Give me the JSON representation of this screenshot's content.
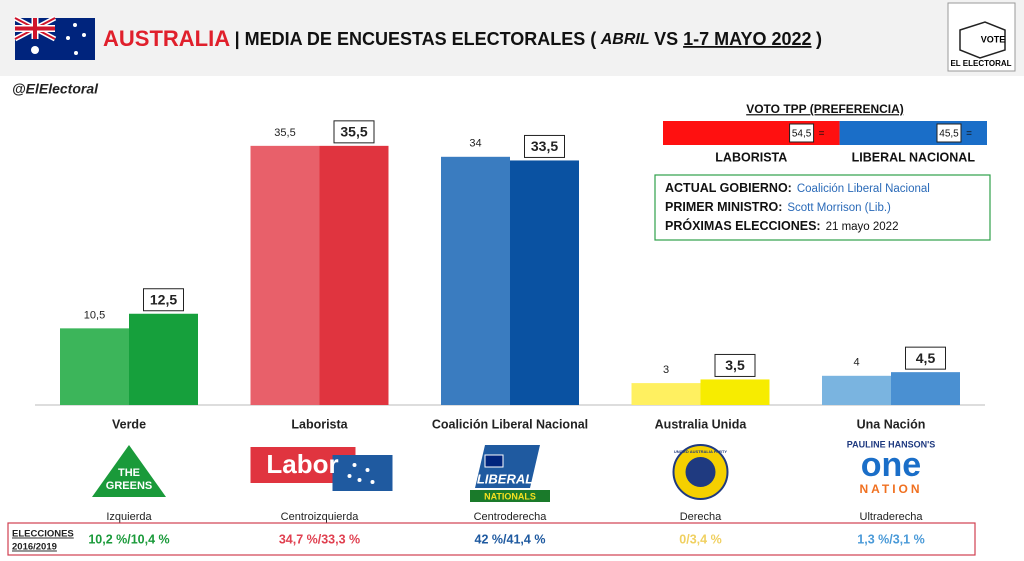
{
  "chart_data": {
    "type": "bar",
    "title": [
      "AUSTRALIA",
      "| MEDIA DE ENCUESTAS ELECTORALES (",
      "ABRIL",
      " VS ",
      "1-7 MAYO 2022",
      ")"
    ],
    "brand": [
      "VOTE",
      "EL ELECTORAL"
    ],
    "source": "@ElElectoral",
    "categories": [
      "Verde",
      "Laborista",
      "Coalición Liberal Nacional",
      "Australia Unida",
      "Una Nación"
    ],
    "series": [
      {
        "colors": [
          "#3cb55a",
          "#e8606a",
          "#3a7cc0",
          "#fff060",
          "#7ab4e0"
        ],
        "values": [
          10.5,
          35.5,
          34,
          3,
          4
        ],
        "value_labels": [
          "10,5",
          "35,5",
          "34",
          "3",
          "4"
        ]
      },
      {
        "colors": [
          "#16a03c",
          "#e0343f",
          "#0a52a2",
          "#f7ec00",
          "#4a90d2"
        ],
        "values": [
          12.5,
          35.5,
          33.5,
          3.5,
          4.5
        ],
        "value_labels": [
          "12,5",
          "35,5",
          "33,5",
          "3,5",
          "4,5"
        ]
      }
    ],
    "logos": [
      [
        "THE",
        "GREENS"
      ],
      [
        "Labor"
      ],
      [
        "LIBERAL",
        "NATIONALS"
      ],
      [
        "UNITED AUSTRALIA PARTY"
      ],
      [
        "PAULINE HANSON'S",
        "one",
        "NATION"
      ]
    ],
    "ideologies": [
      "Izquierda",
      "Centroizquierda",
      "Centroderecha",
      "Derecha",
      "Ultraderecha"
    ],
    "elections": {
      "label": [
        "ELECCIONES",
        "2016/2019"
      ],
      "values": [
        "10,2 %/10,4 %",
        "34,7 %/33,3 %",
        "42 %/41,4 %",
        "0/3,4 %",
        "1,3 %/3,1 %"
      ],
      "colors": [
        "#1a9a3a",
        "#e04050",
        "#1f5aa0",
        "#f0d060",
        "#4a9ad8"
      ]
    },
    "tpp": {
      "title": "VOTO TPP (PREFERENCIA)",
      "names": [
        "LABORISTA",
        "LIBERAL NACIONAL"
      ],
      "values": [
        54.5,
        45.5
      ],
      "value_labels": [
        "54,5",
        "45,5"
      ],
      "separator": "=",
      "colors": [
        "#ff1010",
        "#1a6ec8"
      ]
    },
    "info": [
      {
        "label": "ACTUAL GOBIERNO:",
        "value": "Coalición Liberal Nacional"
      },
      {
        "label": "PRIMER MINISTRO:",
        "value": "Scott Morrison (Lib.)"
      },
      {
        "label": "PRÓXIMAS ELECCIONES:",
        "value": "21 mayo 2022"
      }
    ]
  }
}
